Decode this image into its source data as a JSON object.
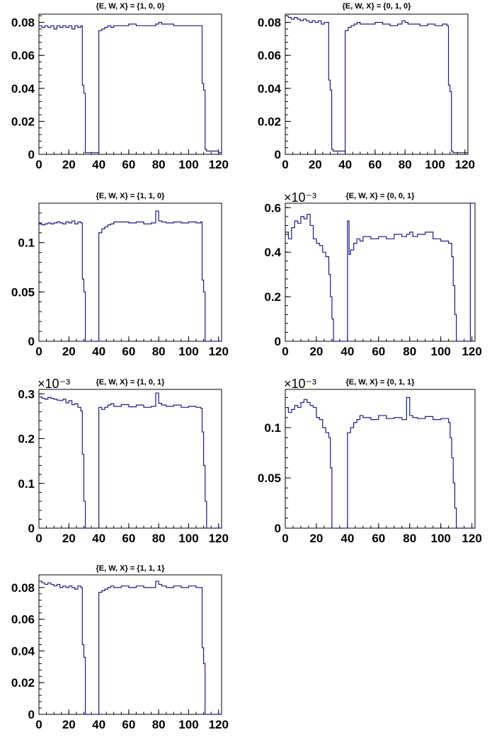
{
  "colors": {
    "histogram_line": "#1a1a8c",
    "frame": "#000000",
    "background": "#ffffff"
  },
  "chart_data": [
    {
      "type": "line",
      "subtype": "histogram",
      "title": "{E, W, X} = {1, 0, 0}",
      "xlim": [
        0,
        122
      ],
      "ylim": [
        0,
        0.085
      ],
      "exponent_label": "",
      "xticks": [
        0,
        20,
        40,
        60,
        80,
        100,
        120
      ],
      "xtick_labels": [
        "0",
        "20",
        "40",
        "60",
        "80",
        "100",
        "120"
      ],
      "yticks": [
        0,
        0.02,
        0.04,
        0.06,
        0.08
      ],
      "ytick_labels": [
        "0",
        "0.02",
        "0.04",
        "0.06",
        "0.08"
      ],
      "series": [
        {
          "x": [
            0,
            2,
            4,
            6,
            8,
            10,
            12,
            14,
            16,
            18,
            20,
            22,
            24,
            26,
            28,
            29,
            30,
            31,
            32,
            40,
            42,
            44,
            46,
            48,
            50,
            55,
            60,
            65,
            70,
            75,
            78,
            80,
            82,
            85,
            90,
            95,
            100,
            105,
            108,
            109,
            110,
            111,
            112,
            120
          ],
          "values": [
            0.078,
            0.077,
            0.078,
            0.077,
            0.078,
            0.076,
            0.078,
            0.077,
            0.078,
            0.077,
            0.078,
            0.076,
            0.078,
            0.077,
            0.078,
            0.042,
            0.037,
            0.001,
            0.001,
            0.075,
            0.076,
            0.077,
            0.078,
            0.077,
            0.078,
            0.078,
            0.079,
            0.078,
            0.078,
            0.078,
            0.079,
            0.08,
            0.079,
            0.079,
            0.078,
            0.078,
            0.078,
            0.078,
            0.078,
            0.043,
            0.039,
            0.003,
            0.002,
            0.001
          ]
        }
      ]
    },
    {
      "type": "line",
      "subtype": "histogram",
      "title": "{E, W, X} = {0, 1, 0}",
      "xlim": [
        0,
        122
      ],
      "ylim": [
        0,
        0.085
      ],
      "exponent_label": "",
      "xticks": [
        0,
        20,
        40,
        60,
        80,
        100,
        120
      ],
      "xtick_labels": [
        "0",
        "20",
        "40",
        "60",
        "80",
        "100",
        "120"
      ],
      "yticks": [
        0,
        0.02,
        0.04,
        0.06,
        0.08
      ],
      "ytick_labels": [
        "0",
        "0.02",
        "0.04",
        "0.06",
        "0.08"
      ],
      "series": [
        {
          "x": [
            0,
            2,
            4,
            6,
            8,
            10,
            12,
            14,
            16,
            18,
            20,
            22,
            24,
            26,
            28,
            29,
            30,
            31,
            32,
            40,
            42,
            44,
            46,
            48,
            50,
            55,
            60,
            65,
            70,
            75,
            78,
            80,
            82,
            85,
            90,
            95,
            100,
            105,
            108,
            109,
            110,
            111,
            112,
            120
          ],
          "values": [
            0.084,
            0.083,
            0.082,
            0.083,
            0.082,
            0.081,
            0.082,
            0.081,
            0.08,
            0.081,
            0.08,
            0.081,
            0.079,
            0.08,
            0.08,
            0.045,
            0.039,
            0.003,
            0.002,
            0.075,
            0.077,
            0.078,
            0.079,
            0.08,
            0.079,
            0.079,
            0.08,
            0.079,
            0.078,
            0.079,
            0.081,
            0.08,
            0.079,
            0.079,
            0.078,
            0.079,
            0.078,
            0.079,
            0.078,
            0.042,
            0.038,
            0.002,
            0.001,
            0.001
          ]
        }
      ]
    },
    {
      "type": "line",
      "subtype": "histogram",
      "title": "{E, W, X} = {1, 1, 0}",
      "xlim": [
        0,
        122
      ],
      "ylim": [
        0,
        0.14
      ],
      "exponent_label": "",
      "xticks": [
        0,
        20,
        40,
        60,
        80,
        100,
        120
      ],
      "xtick_labels": [
        "0",
        "20",
        "40",
        "60",
        "80",
        "100",
        "120"
      ],
      "yticks": [
        0,
        0.05,
        0.1
      ],
      "ytick_labels": [
        "0",
        "0.05",
        "0.1"
      ],
      "series": [
        {
          "x": [
            0,
            2,
            4,
            6,
            8,
            10,
            12,
            14,
            16,
            18,
            20,
            22,
            24,
            26,
            28,
            29,
            30,
            31,
            32,
            40,
            42,
            44,
            46,
            48,
            50,
            55,
            60,
            65,
            70,
            75,
            78,
            80,
            82,
            85,
            90,
            95,
            100,
            105,
            108,
            109,
            110,
            111,
            112,
            120
          ],
          "values": [
            0.119,
            0.118,
            0.119,
            0.12,
            0.119,
            0.12,
            0.121,
            0.12,
            0.119,
            0.121,
            0.12,
            0.122,
            0.119,
            0.121,
            0.12,
            0.063,
            0.05,
            0.0,
            0.0,
            0.11,
            0.114,
            0.116,
            0.118,
            0.119,
            0.121,
            0.121,
            0.12,
            0.121,
            0.119,
            0.12,
            0.132,
            0.122,
            0.121,
            0.12,
            0.121,
            0.12,
            0.121,
            0.12,
            0.121,
            0.062,
            0.05,
            0.0,
            0.0,
            0.0
          ]
        }
      ]
    },
    {
      "type": "line",
      "subtype": "histogram",
      "title": "{E, W, X} = {0, 0, 1}",
      "xlim": [
        0,
        122
      ],
      "ylim": [
        0,
        0.00062
      ],
      "exponent_label": "×10⁻³",
      "xticks": [
        0,
        20,
        40,
        60,
        80,
        100,
        120
      ],
      "xtick_labels": [
        "0",
        "20",
        "40",
        "60",
        "80",
        "100",
        "120"
      ],
      "yticks": [
        0,
        0.0002,
        0.0004,
        0.0006
      ],
      "ytick_labels": [
        "0",
        "0.2",
        "0.4",
        "0.6"
      ],
      "series": [
        {
          "x": [
            0,
            2,
            4,
            6,
            8,
            10,
            12,
            14,
            16,
            18,
            20,
            22,
            24,
            26,
            28,
            29,
            30,
            31,
            32,
            40,
            41,
            42,
            44,
            46,
            48,
            50,
            55,
            60,
            65,
            70,
            75,
            78,
            80,
            82,
            85,
            90,
            95,
            100,
            105,
            107,
            108,
            109,
            110,
            118,
            119,
            120
          ],
          "values": [
            0.00049,
            0.00046,
            0.00051,
            0.00054,
            0.00053,
            0.00056,
            0.00055,
            0.00057,
            0.00052,
            0.00046,
            0.00044,
            0.00043,
            0.0004,
            0.00038,
            0.0003,
            0.0002,
            0.0001,
            0.0,
            0.0,
            0.00054,
            0.00039,
            0.00041,
            0.00044,
            0.00046,
            0.00045,
            0.00047,
            0.00046,
            0.00047,
            0.00046,
            0.00048,
            0.00047,
            0.00048,
            0.00049,
            0.00047,
            0.00048,
            0.00049,
            0.00046,
            0.00045,
            0.00044,
            0.00038,
            0.00025,
            0.00012,
            0.0,
            0.0,
            0.00062,
            0.00062
          ]
        }
      ]
    },
    {
      "type": "line",
      "subtype": "histogram",
      "title": "{E, W, X} = {1, 0, 1}",
      "xlim": [
        0,
        122
      ],
      "ylim": [
        0,
        0.00031
      ],
      "exponent_label": "×10⁻³",
      "xticks": [
        0,
        20,
        40,
        60,
        80,
        100,
        120
      ],
      "xtick_labels": [
        "0",
        "20",
        "40",
        "60",
        "80",
        "100",
        "120"
      ],
      "yticks": [
        0,
        0.0001,
        0.0002,
        0.0003
      ],
      "ytick_labels": [
        "0",
        "0.1",
        "0.2",
        "0.3"
      ],
      "series": [
        {
          "x": [
            0,
            2,
            4,
            6,
            8,
            10,
            12,
            14,
            16,
            18,
            20,
            22,
            24,
            26,
            28,
            29,
            30,
            31,
            32,
            40,
            42,
            44,
            46,
            48,
            50,
            55,
            60,
            65,
            70,
            75,
            78,
            80,
            82,
            85,
            90,
            95,
            100,
            105,
            108,
            109,
            110,
            111,
            112,
            120
          ],
          "values": [
            0.000293,
            0.00029,
            0.000288,
            0.000292,
            0.00029,
            0.000288,
            0.000286,
            0.000285,
            0.000288,
            0.00028,
            0.000285,
            0.000276,
            0.000278,
            0.00027,
            0.000262,
            0.000165,
            6e-05,
            0.0,
            0.0,
            0.00027,
            0.000265,
            0.00027,
            0.000275,
            0.000278,
            0.000272,
            0.000276,
            0.000271,
            0.000275,
            0.00027,
            0.000272,
            0.000302,
            0.000279,
            0.000275,
            0.000272,
            0.000275,
            0.00027,
            0.000272,
            0.00027,
            0.000268,
            0.000215,
            0.00014,
            6e-05,
            0.0,
            0.0
          ]
        }
      ]
    },
    {
      "type": "line",
      "subtype": "histogram",
      "title": "{E, W, X} = {0, 1, 1}",
      "xlim": [
        0,
        122
      ],
      "ylim": [
        0,
        0.000138
      ],
      "exponent_label": "×10⁻³",
      "xticks": [
        0,
        20,
        40,
        60,
        80,
        100,
        120
      ],
      "xtick_labels": [
        "0",
        "20",
        "40",
        "60",
        "80",
        "100",
        "120"
      ],
      "yticks": [
        0,
        5e-05,
        0.0001
      ],
      "ytick_labels": [
        "0",
        "0.05",
        "0.1"
      ],
      "series": [
        {
          "x": [
            0,
            2,
            4,
            6,
            8,
            10,
            12,
            14,
            16,
            18,
            20,
            22,
            24,
            26,
            28,
            29,
            30,
            31,
            40,
            42,
            44,
            46,
            48,
            50,
            55,
            60,
            65,
            70,
            75,
            78,
            80,
            82,
            85,
            90,
            95,
            100,
            105,
            106,
            107,
            108,
            109,
            110,
            120
          ],
          "values": [
            0.00012,
            0.000115,
            0.000118,
            0.000122,
            0.00012,
            0.000125,
            0.000128,
            0.000125,
            0.000122,
            0.00012,
            0.00011,
            0.000108,
            0.0001,
            9.5e-05,
            9e-05,
            6e-05,
            0.0,
            0.0,
            9.5e-05,
            0.0001,
            0.000105,
            0.000108,
            0.000112,
            0.00011,
            0.000108,
            0.000112,
            0.000109,
            0.00011,
            0.000108,
            0.00013,
            0.000112,
            0.00011,
            0.000109,
            0.000111,
            0.000108,
            0.000109,
            0.000105,
            9e-05,
            7e-05,
            4.5e-05,
            2e-05,
            0.0,
            0.0
          ]
        }
      ]
    },
    {
      "type": "line",
      "subtype": "histogram",
      "title": "{E, W, X} = {1, 1, 1}",
      "xlim": [
        0,
        122
      ],
      "ylim": [
        0,
        0.088
      ],
      "exponent_label": "",
      "xticks": [
        0,
        20,
        40,
        60,
        80,
        100,
        120
      ],
      "xtick_labels": [
        "0",
        "20",
        "40",
        "60",
        "80",
        "100",
        "120"
      ],
      "yticks": [
        0,
        0.02,
        0.04,
        0.06,
        0.08
      ],
      "ytick_labels": [
        "0",
        "0.02",
        "0.04",
        "0.06",
        "0.08"
      ],
      "series": [
        {
          "x": [
            0,
            2,
            4,
            6,
            8,
            10,
            12,
            14,
            16,
            18,
            20,
            22,
            24,
            26,
            28,
            29,
            30,
            31,
            32,
            40,
            42,
            44,
            46,
            48,
            50,
            55,
            60,
            65,
            70,
            75,
            78,
            80,
            82,
            85,
            90,
            95,
            100,
            105,
            108,
            109,
            110,
            111,
            112,
            120
          ],
          "values": [
            0.084,
            0.083,
            0.082,
            0.083,
            0.082,
            0.081,
            0.082,
            0.08,
            0.081,
            0.08,
            0.081,
            0.08,
            0.079,
            0.081,
            0.08,
            0.044,
            0.036,
            0.0,
            0.0,
            0.077,
            0.078,
            0.079,
            0.08,
            0.081,
            0.08,
            0.081,
            0.08,
            0.081,
            0.08,
            0.08,
            0.084,
            0.082,
            0.081,
            0.08,
            0.081,
            0.08,
            0.081,
            0.08,
            0.08,
            0.042,
            0.032,
            0.0,
            0.0,
            0.0
          ]
        }
      ]
    }
  ]
}
